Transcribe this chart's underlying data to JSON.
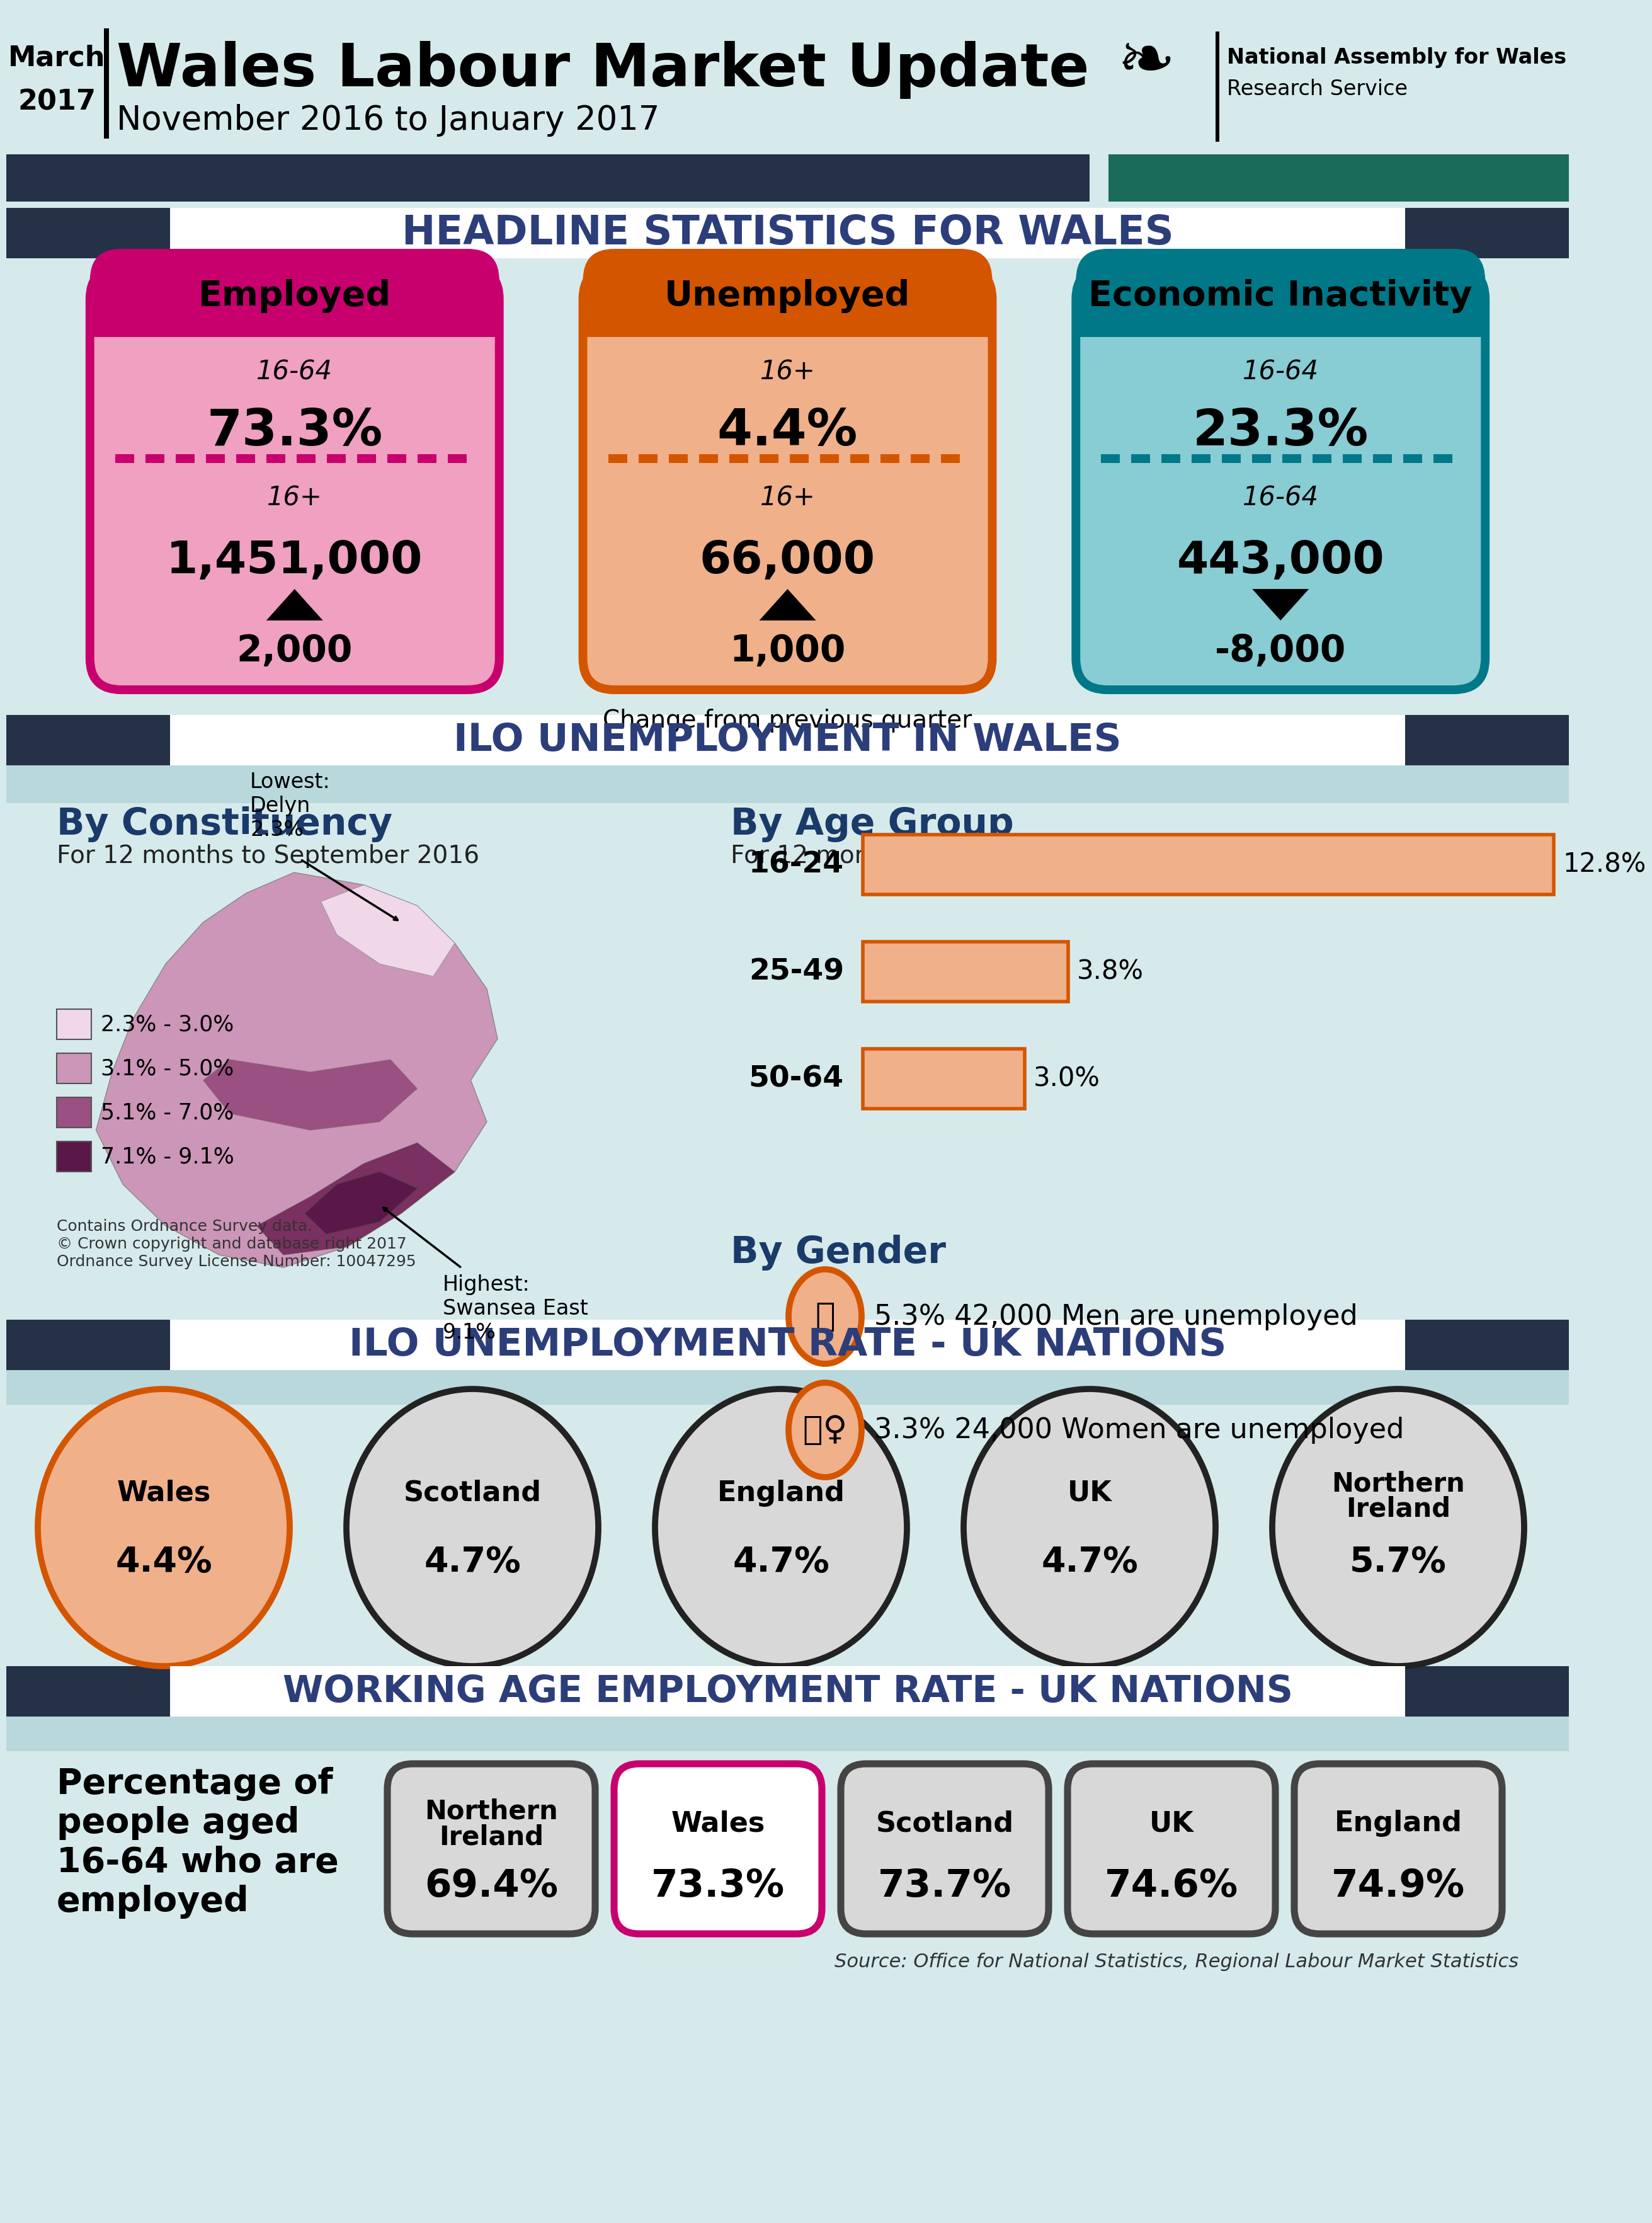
{
  "bg_color": "#d6eaeb",
  "header": {
    "month": "March",
    "year": "2017",
    "title": "Wales Labour Market Update",
    "subtitle": "November 2016 to January 2017",
    "bar_left_color": "#253147",
    "bar_right_color": "#1a6b5a"
  },
  "section1": {
    "title": "HEADLINE STATISTICS FOR WALES",
    "title_color": "#2c3e7a",
    "banner_color": "#253147",
    "cards": [
      {
        "label": "Employed",
        "border_color": "#c8006e",
        "fill_color": "#f0a0c0",
        "top_color": "#c8006e",
        "dash_color": "#c8006e",
        "age1": "16-64",
        "pct": "73.3%",
        "age2": "16+",
        "number": "1,451,000",
        "change": "2,000",
        "arrow_up": true
      },
      {
        "label": "Unemployed",
        "border_color": "#d45500",
        "fill_color": "#f0b08a",
        "top_color": "#d45500",
        "dash_color": "#d45500",
        "age1": "16+",
        "pct": "4.4%",
        "age2": "16+",
        "number": "66,000",
        "change": "1,000",
        "arrow_up": true
      },
      {
        "label": "Economic Inactivity",
        "border_color": "#007888",
        "fill_color": "#88ccd4",
        "top_color": "#007888",
        "dash_color": "#007888",
        "age1": "16-64",
        "pct": "23.3%",
        "age2": "16-64",
        "number": "443,000",
        "change": "-8,000",
        "arrow_up": false
      }
    ],
    "change_label": "Change from previous quarter"
  },
  "section2": {
    "title": "ILO UNEMPLOYMENT IN WALES",
    "title_color": "#2c3e7a",
    "constituency": {
      "title": "By Constituency",
      "subtitle": "For 12 months to September 2016",
      "lowest_label": "Lowest:\nDelyn\n2.3%",
      "highest_label": "Highest:\nSwansea East\n9.1%",
      "legend": [
        {
          "range": "2.3% - 3.0%",
          "color": "#f0d8e8"
        },
        {
          "range": "3.1% - 5.0%",
          "color": "#cc96b8"
        },
        {
          "range": "5.1% - 7.0%",
          "color": "#9a5080"
        },
        {
          "range": "7.1% - 9.1%",
          "color": "#5a1848"
        }
      ]
    },
    "age_group": {
      "title": "By Age Group",
      "subtitle": "For 12 months to September 2016",
      "bars": [
        {
          "label": "16-24",
          "value": 12.8,
          "pct": "12.8%"
        },
        {
          "label": "25-49",
          "value": 3.8,
          "pct": "3.8%"
        },
        {
          "label": "50-64",
          "value": 3.0,
          "pct": "3.0%"
        }
      ],
      "bar_fill_color": "#f0b08a",
      "bar_border_color": "#d45500"
    },
    "gender": {
      "title": "By Gender",
      "men": {
        "pct": "5.3%",
        "count": "42,000",
        "text": "Men are unemployed",
        "fill_color": "#f0b08a",
        "border_color": "#d45500"
      },
      "women": {
        "pct": "3.3%",
        "count": "24,000",
        "text": "Women are unemployed",
        "fill_color": "#f0b08a",
        "border_color": "#d45500"
      }
    }
  },
  "section3": {
    "title": "ILO UNEMPLOYMENT RATE - UK NATIONS",
    "title_color": "#2c3e7a",
    "nations": [
      {
        "name": "Wales",
        "value": "4.4%",
        "fill_color": "#f0b08a",
        "border_color": "#d45500",
        "text_color": "#000000"
      },
      {
        "name": "Scotland",
        "value": "4.7%",
        "fill_color": "#d8d8d8",
        "border_color": "#222222",
        "text_color": "#000000"
      },
      {
        "name": "England",
        "value": "4.7%",
        "fill_color": "#d8d8d8",
        "border_color": "#222222",
        "text_color": "#000000"
      },
      {
        "name": "UK",
        "value": "4.7%",
        "fill_color": "#d8d8d8",
        "border_color": "#222222",
        "text_color": "#000000"
      },
      {
        "name": "Northern\nIreland",
        "value": "5.7%",
        "fill_color": "#d8d8d8",
        "border_color": "#222222",
        "text_color": "#000000"
      }
    ]
  },
  "section4": {
    "title": "WORKING AGE EMPLOYMENT RATE - UK NATIONS",
    "title_color": "#2c3e7a",
    "description": "Percentage of\npeople aged\n16-64 who are\nemployed",
    "nations": [
      {
        "name": "Northern\nIreland",
        "value": "69.4%",
        "fill_color": "#d8d8d8",
        "border_color": "#444444"
      },
      {
        "name": "Wales",
        "value": "73.3%",
        "fill_color": "#ffffff",
        "border_color": "#c8006e"
      },
      {
        "name": "Scotland",
        "value": "73.7%",
        "fill_color": "#d8d8d8",
        "border_color": "#444444"
      },
      {
        "name": "UK",
        "value": "74.6%",
        "fill_color": "#d8d8d8",
        "border_color": "#444444"
      },
      {
        "name": "England",
        "value": "74.9%",
        "fill_color": "#d8d8d8",
        "border_color": "#444444"
      }
    ],
    "source": "Source: Office for National Statistics, Regional Labour Market Statistics"
  }
}
